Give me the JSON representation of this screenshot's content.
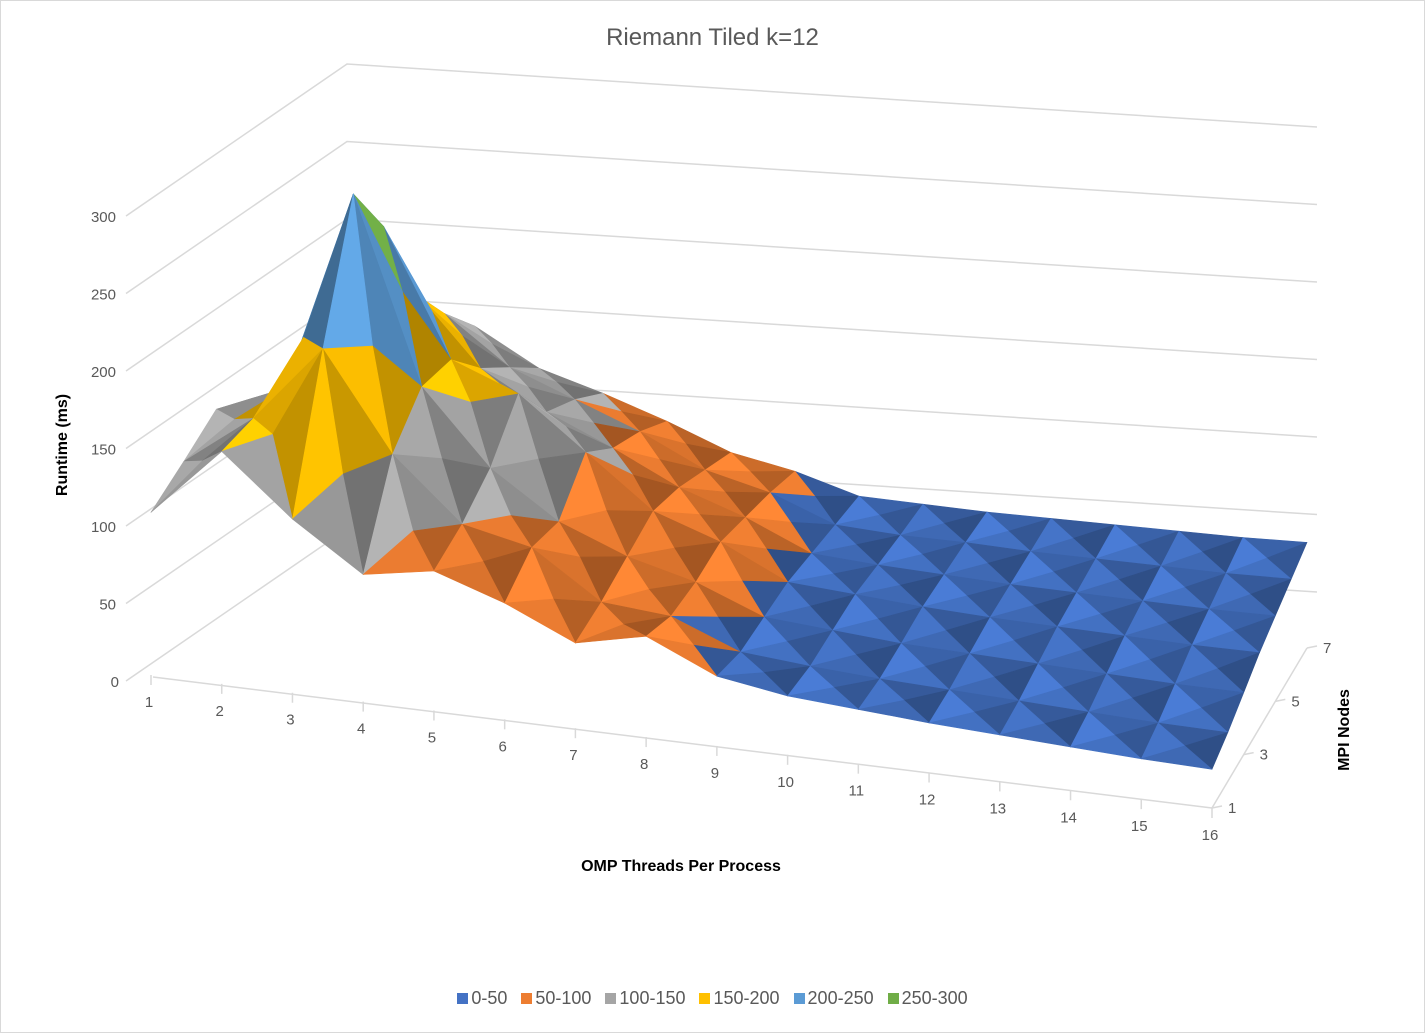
{
  "chart_data": {
    "type": "surface",
    "title": "Riemann Tiled k=12",
    "xlabel": "OMP Threads Per Process",
    "ylabel": "MPI Nodes",
    "zlabel": "Runtime (ms)",
    "zlim": [
      0,
      300
    ],
    "z_ticks": [
      "0",
      "50",
      "100",
      "150",
      "200",
      "250",
      "300"
    ],
    "x_ticks": [
      "1",
      "2",
      "3",
      "4",
      "5",
      "6",
      "7",
      "8",
      "9",
      "10",
      "11",
      "12",
      "13",
      "14",
      "15",
      "16"
    ],
    "y_ticks": [
      "1",
      "3",
      "5",
      "7"
    ],
    "y_values": [
      1,
      2,
      3,
      4,
      5,
      6,
      7
    ],
    "grid": true,
    "legend_position": "bottom",
    "bands": [
      {
        "label": "0-50",
        "color": "#4472c4"
      },
      {
        "label": "50-100",
        "color": "#ed7d31"
      },
      {
        "label": "100-150",
        "color": "#a5a5a5"
      },
      {
        "label": "150-200",
        "color": "#ffc000"
      },
      {
        "label": "200-250",
        "color": "#5b9bd5"
      },
      {
        "label": "250-300",
        "color": "#70ad47"
      }
    ],
    "z": [
      [
        105,
        150,
        112,
        82,
        90,
        75,
        55,
        65,
        45,
        38,
        35,
        32,
        30,
        28,
        26,
        25
      ],
      [
        122,
        155,
        205,
        142,
        102,
        92,
        62,
        58,
        40,
        36,
        33,
        31,
        29,
        27,
        25,
        24
      ],
      [
        140,
        158,
        288,
        168,
        120,
        90,
        72,
        60,
        42,
        38,
        34,
        32,
        30,
        28,
        26,
        25
      ],
      [
        112,
        150,
        250,
        168,
        150,
        116,
        82,
        66,
        44,
        40,
        36,
        33,
        31,
        29,
        27,
        26
      ],
      [
        96,
        125,
        190,
        145,
        120,
        100,
        78,
        62,
        42,
        38,
        35,
        32,
        30,
        28,
        26,
        25
      ],
      [
        78,
        112,
        160,
        128,
        110,
        92,
        70,
        58,
        40,
        36,
        34,
        31,
        29,
        27,
        25,
        24
      ],
      [
        62,
        96,
        135,
        110,
        96,
        80,
        62,
        52,
        38,
        35,
        32,
        30,
        28,
        26,
        24,
        23
      ]
    ]
  }
}
